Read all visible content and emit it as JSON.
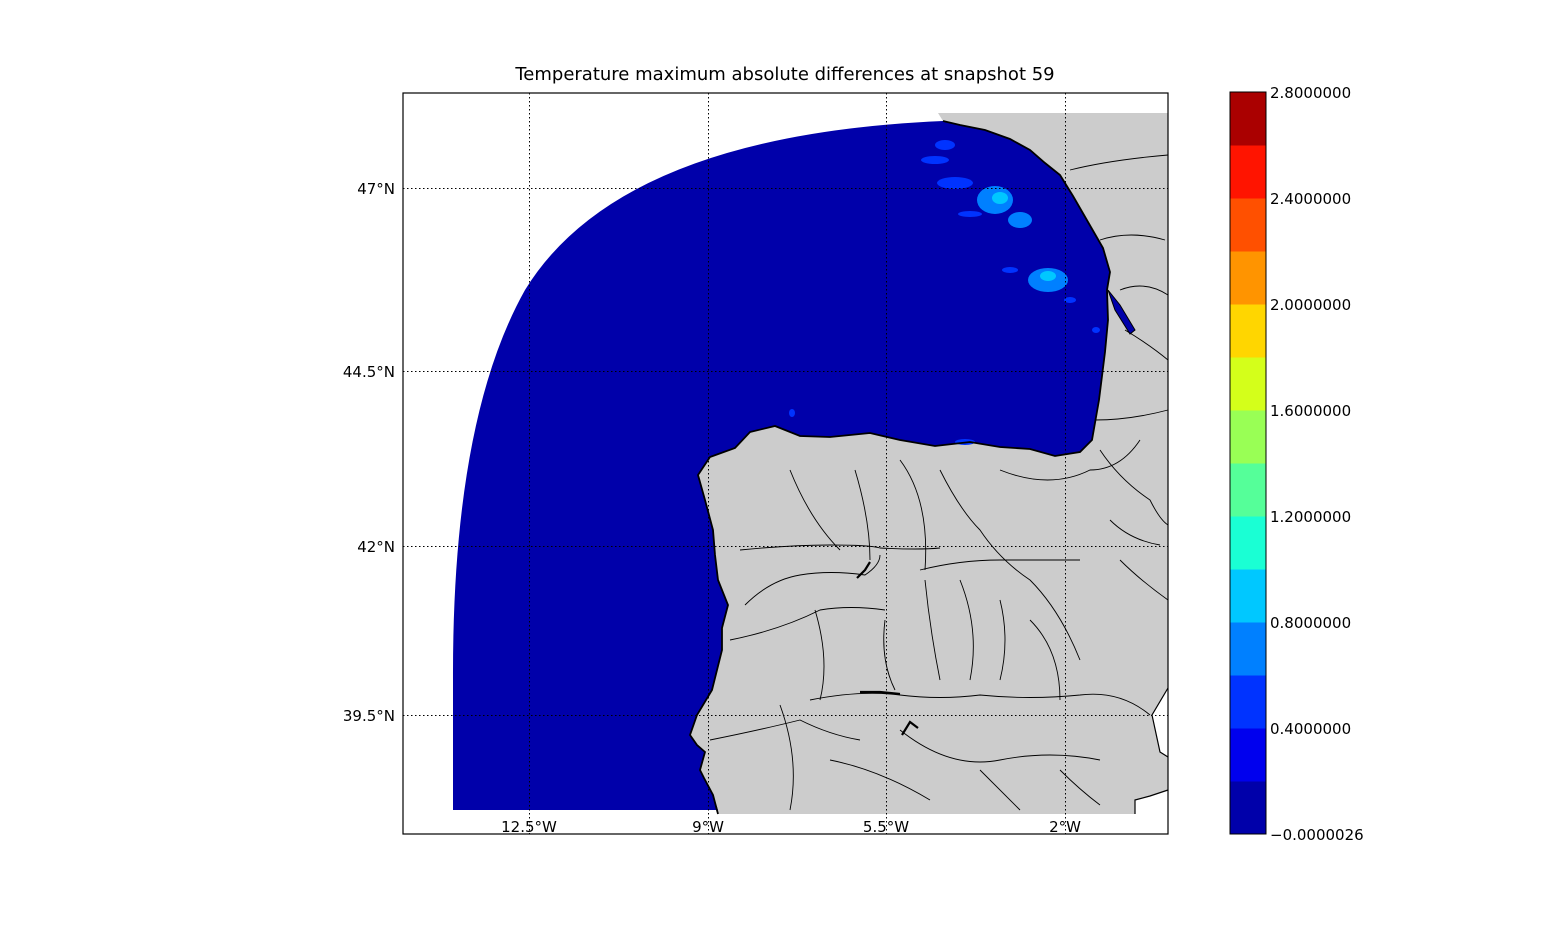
{
  "title": "Temperature maximum absolute differences at snapshot 59",
  "colors": {
    "ocean": "#0000aa",
    "land": "#cccccc",
    "background": "#ffffff",
    "coast": "#000000"
  },
  "axes": {
    "lon_ticks": [
      "12.5°W",
      "9°W",
      "5.5°W",
      "2°W"
    ],
    "lat_ticks": [
      "47°N",
      "44.5°N",
      "42°N",
      "39.5°N"
    ]
  },
  "colorbar": {
    "tick_labels": [
      "2.8000000",
      "2.4000000",
      "2.0000000",
      "1.6000000",
      "1.2000000",
      "0.8000000",
      "0.4000000",
      "−0.0000026"
    ],
    "levels": [
      {
        "color": "#0000aa"
      },
      {
        "color": "#0000ee"
      },
      {
        "color": "#0033ff"
      },
      {
        "color": "#0080ff"
      },
      {
        "color": "#00c8ff"
      },
      {
        "color": "#1affd4"
      },
      {
        "color": "#55ff99"
      },
      {
        "color": "#99ff55"
      },
      {
        "color": "#d4ff1a"
      },
      {
        "color": "#ffd600"
      },
      {
        "color": "#ff9400"
      },
      {
        "color": "#ff5000"
      },
      {
        "color": "#ff1400"
      },
      {
        "color": "#aa0000"
      }
    ]
  }
}
